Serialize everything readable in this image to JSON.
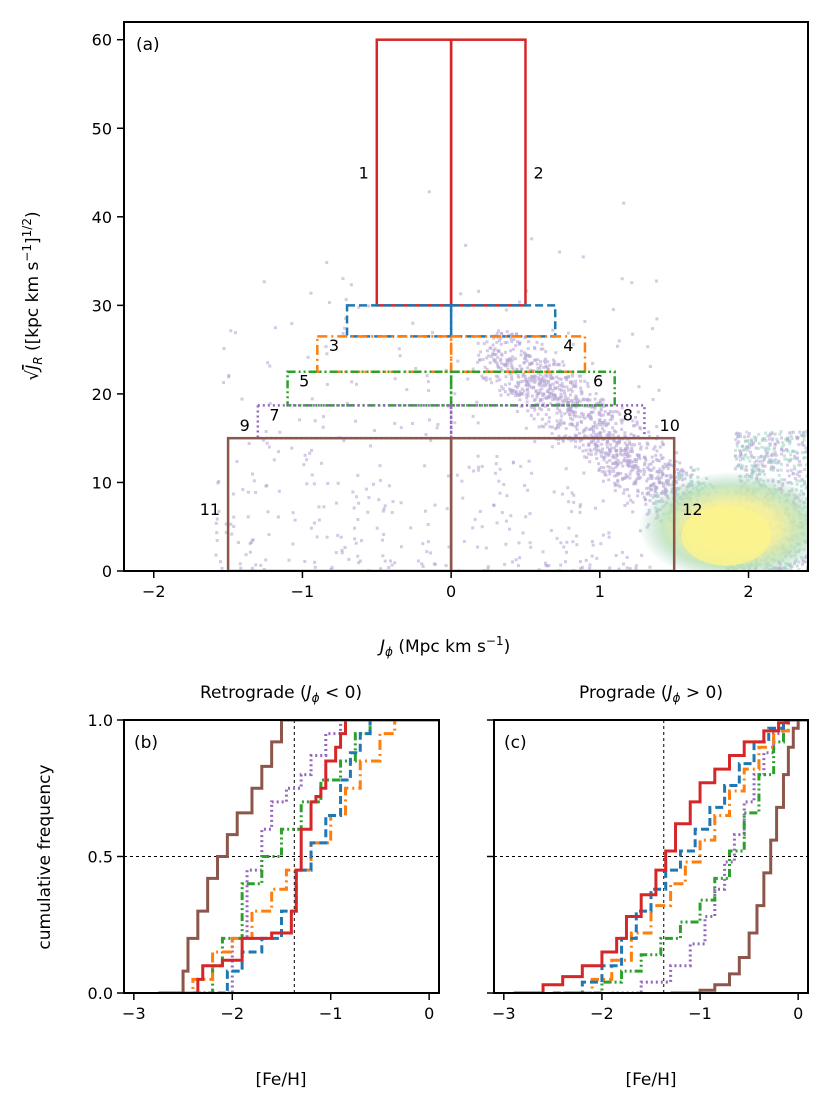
{
  "chart_data": [
    {
      "type": "scatter",
      "panel": "(a)",
      "xlabel": "Jφ (Mpc km s⁻¹)",
      "ylabel": "√J_R ([kpc km s⁻¹]^1/2)",
      "xlim": [
        -2.2,
        2.4
      ],
      "ylim": [
        0,
        62
      ],
      "xticks": [
        -2,
        -1,
        0,
        1,
        2
      ],
      "yticks": [
        0,
        10,
        20,
        30,
        40,
        50,
        60
      ],
      "density": "2D histogram of stars, densest near Jφ≈1.9, √J_R≈5",
      "regions": [
        {
          "id": "1",
          "xmin": -0.5,
          "xmax": 0,
          "ymin": 30,
          "ymax": 60,
          "color": "#d62728",
          "style": "solid"
        },
        {
          "id": "2",
          "xmin": 0,
          "xmax": 0.5,
          "ymin": 30,
          "ymax": 60,
          "color": "#d62728",
          "style": "solid"
        },
        {
          "id": "3",
          "xmin": -0.7,
          "xmax": 0,
          "ymin": 26.5,
          "ymax": 30,
          "color": "#1f77b4",
          "style": "dashed"
        },
        {
          "id": "4",
          "xmin": 0,
          "xmax": 0.7,
          "ymin": 26.5,
          "ymax": 30,
          "color": "#1f77b4",
          "style": "dashed"
        },
        {
          "id": "5",
          "xmin": -0.9,
          "xmax": 0,
          "ymin": 22.5,
          "ymax": 26.5,
          "color": "#ff7f0e",
          "style": "dashdot"
        },
        {
          "id": "6",
          "xmin": 0,
          "xmax": 0.9,
          "ymin": 22.5,
          "ymax": 26.5,
          "color": "#ff7f0e",
          "style": "dashdot"
        },
        {
          "id": "7",
          "xmin": -1.1,
          "xmax": 0,
          "ymin": 18.7,
          "ymax": 22.5,
          "color": "#2ca02c",
          "style": "dashdotdot"
        },
        {
          "id": "8",
          "xmin": 0,
          "xmax": 1.1,
          "ymin": 18.7,
          "ymax": 22.5,
          "color": "#2ca02c",
          "style": "dashdotdot"
        },
        {
          "id": "9",
          "xmin": -1.3,
          "xmax": 0,
          "ymin": 15,
          "ymax": 18.7,
          "color": "#9467bd",
          "style": "dotted"
        },
        {
          "id": "10",
          "xmin": 0,
          "xmax": 1.3,
          "ymin": 15,
          "ymax": 18.7,
          "color": "#9467bd",
          "style": "dotted"
        },
        {
          "id": "11",
          "xmin": -1.5,
          "xmax": 0,
          "ymin": 0,
          "ymax": 15,
          "color": "#8c564b",
          "style": "solid"
        },
        {
          "id": "12",
          "xmin": 0,
          "xmax": 1.5,
          "ymin": 0,
          "ymax": 15,
          "color": "#8c564b",
          "style": "solid"
        }
      ]
    },
    {
      "type": "line",
      "panel": "(b)",
      "title": "Retrograde (Jφ < 0)",
      "xlabel": "[Fe/H]",
      "ylabel": "cumulative frequency",
      "xlim": [
        -3.1,
        0.1
      ],
      "ylim": [
        0,
        1
      ],
      "xticks": [
        -3,
        -2,
        -1,
        0
      ],
      "yticks": [
        0.0,
        0.5,
        1.0
      ],
      "reference": {
        "x": -1.37,
        "y": 0.5
      },
      "series": [
        {
          "name": "1",
          "color": "#d62728",
          "style": "solid",
          "x": [
            -2.4,
            -2.35,
            -2.3,
            -2.1,
            -1.9,
            -1.6,
            -1.4,
            -1.35,
            -1.3,
            -1.2,
            -1.15,
            -1.1,
            -1.05,
            -0.95,
            -0.9,
            -0.85
          ],
          "y": [
            0.0,
            0.05,
            0.1,
            0.12,
            0.2,
            0.22,
            0.3,
            0.45,
            0.6,
            0.7,
            0.72,
            0.75,
            0.85,
            0.9,
            0.95,
            1.0
          ]
        },
        {
          "name": "3",
          "color": "#1f77b4",
          "style": "dashed",
          "x": [
            -2.15,
            -2.05,
            -1.9,
            -1.7,
            -1.5,
            -1.35,
            -1.2,
            -1.05,
            -0.9,
            -0.8,
            -0.7,
            -0.6
          ],
          "y": [
            0.0,
            0.08,
            0.15,
            0.2,
            0.3,
            0.45,
            0.55,
            0.65,
            0.78,
            0.88,
            0.95,
            1.0
          ]
        },
        {
          "name": "5",
          "color": "#ff7f0e",
          "style": "dashdot",
          "x": [
            -2.5,
            -2.4,
            -2.2,
            -2.0,
            -1.8,
            -1.6,
            -1.45,
            -1.2,
            -1.0,
            -0.85,
            -0.7,
            -0.5,
            -0.35
          ],
          "y": [
            0.0,
            0.05,
            0.15,
            0.2,
            0.3,
            0.38,
            0.45,
            0.55,
            0.65,
            0.75,
            0.85,
            0.95,
            1.0
          ]
        },
        {
          "name": "7",
          "color": "#2ca02c",
          "style": "dashdotdot",
          "x": [
            -2.45,
            -2.2,
            -2.1,
            -1.9,
            -1.7,
            -1.5,
            -1.3,
            -1.1,
            -0.9,
            -0.75,
            -0.6
          ],
          "y": [
            0.0,
            0.1,
            0.2,
            0.4,
            0.5,
            0.6,
            0.7,
            0.78,
            0.85,
            0.95,
            1.0
          ]
        },
        {
          "name": "9",
          "color": "#9467bd",
          "style": "dotted",
          "x": [
            -2.3,
            -2.0,
            -1.85,
            -1.7,
            -1.6,
            -1.45,
            -1.3,
            -1.2,
            -1.05,
            -0.9
          ],
          "y": [
            0.0,
            0.2,
            0.45,
            0.6,
            0.7,
            0.75,
            0.8,
            0.87,
            0.95,
            1.0
          ]
        },
        {
          "name": "11",
          "color": "#8c564b",
          "style": "solid",
          "x": [
            -2.75,
            -2.5,
            -2.45,
            -2.35,
            -2.25,
            -2.15,
            -2.05,
            -1.95,
            -1.8,
            -1.7,
            -1.6,
            -1.5
          ],
          "y": [
            0.0,
            0.08,
            0.2,
            0.3,
            0.42,
            0.5,
            0.58,
            0.66,
            0.75,
            0.83,
            0.92,
            1.0
          ]
        }
      ]
    },
    {
      "type": "line",
      "panel": "(c)",
      "title": "Prograde (Jφ > 0)",
      "xlabel": "[Fe/H]",
      "xlim": [
        -3.1,
        0.1
      ],
      "ylim": [
        0,
        1
      ],
      "xticks": [
        -3,
        -2,
        -1,
        0
      ],
      "reference": {
        "x": -1.37,
        "y": 0.5
      },
      "series": [
        {
          "name": "2",
          "color": "#d62728",
          "style": "solid",
          "x": [
            -2.9,
            -2.6,
            -2.4,
            -2.2,
            -2.0,
            -1.85,
            -1.75,
            -1.6,
            -1.45,
            -1.35,
            -1.25,
            -1.1,
            -1.0,
            -0.85,
            -0.7,
            -0.55,
            -0.35,
            -0.2,
            -0.1
          ],
          "y": [
            0.0,
            0.03,
            0.06,
            0.1,
            0.15,
            0.2,
            0.28,
            0.36,
            0.45,
            0.52,
            0.62,
            0.7,
            0.77,
            0.82,
            0.87,
            0.92,
            0.96,
            0.99,
            1.0
          ]
        },
        {
          "name": "4",
          "color": "#1f77b4",
          "style": "dashed",
          "x": [
            -2.5,
            -2.2,
            -2.0,
            -1.8,
            -1.65,
            -1.5,
            -1.35,
            -1.2,
            -1.05,
            -0.9,
            -0.75,
            -0.6,
            -0.45,
            -0.3,
            -0.15
          ],
          "y": [
            0.0,
            0.04,
            0.1,
            0.2,
            0.3,
            0.38,
            0.45,
            0.52,
            0.6,
            0.68,
            0.76,
            0.84,
            0.92,
            0.97,
            1.0
          ]
        },
        {
          "name": "6",
          "color": "#ff7f0e",
          "style": "dashdot",
          "x": [
            -2.4,
            -2.1,
            -1.9,
            -1.7,
            -1.5,
            -1.3,
            -1.15,
            -1.0,
            -0.85,
            -0.7,
            -0.55,
            -0.4,
            -0.25,
            -0.1
          ],
          "y": [
            0.0,
            0.05,
            0.12,
            0.22,
            0.32,
            0.4,
            0.48,
            0.56,
            0.65,
            0.74,
            0.82,
            0.9,
            0.96,
            1.0
          ]
        },
        {
          "name": "8",
          "color": "#2ca02c",
          "style": "dashdotdot",
          "x": [
            -2.3,
            -2.0,
            -1.8,
            -1.6,
            -1.4,
            -1.2,
            -1.0,
            -0.85,
            -0.7,
            -0.55,
            -0.4,
            -0.25,
            -0.15
          ],
          "y": [
            0.0,
            0.04,
            0.08,
            0.14,
            0.2,
            0.26,
            0.34,
            0.42,
            0.52,
            0.66,
            0.8,
            0.92,
            1.0
          ]
        },
        {
          "name": "10",
          "color": "#9467bd",
          "style": "dotted",
          "x": [
            -1.9,
            -1.6,
            -1.3,
            -1.1,
            -0.95,
            -0.85,
            -0.75,
            -0.65,
            -0.55,
            -0.45,
            -0.35,
            -0.25,
            -0.15
          ],
          "y": [
            0.0,
            0.04,
            0.1,
            0.18,
            0.28,
            0.38,
            0.48,
            0.58,
            0.7,
            0.8,
            0.88,
            0.95,
            1.0
          ]
        },
        {
          "name": "12",
          "color": "#8c564b",
          "style": "solid",
          "x": [
            -1.3,
            -1.0,
            -0.85,
            -0.7,
            -0.6,
            -0.5,
            -0.42,
            -0.35,
            -0.28,
            -0.22,
            -0.15,
            -0.1,
            -0.05,
            0.0
          ],
          "y": [
            0.0,
            0.01,
            0.03,
            0.07,
            0.13,
            0.22,
            0.32,
            0.44,
            0.56,
            0.68,
            0.8,
            0.9,
            0.97,
            1.0
          ]
        }
      ]
    }
  ],
  "labels": {
    "panel_a": "(a)",
    "panel_b": "(b)",
    "panel_c": "(c)",
    "title_b": "Retrograde",
    "title_c": "Prograde",
    "ylabel_bc": "cumulative frequency",
    "xlabel_bc": "[Fe/H]",
    "xlabel_a_units": "(Mpc km s",
    "ylabel_a_units": "([kpc km s"
  },
  "colors": {
    "red": "#d62728",
    "blue": "#1f77b4",
    "orange": "#ff7f0e",
    "green": "#2ca02c",
    "purple": "#9467bd",
    "brown": "#8c564b"
  }
}
